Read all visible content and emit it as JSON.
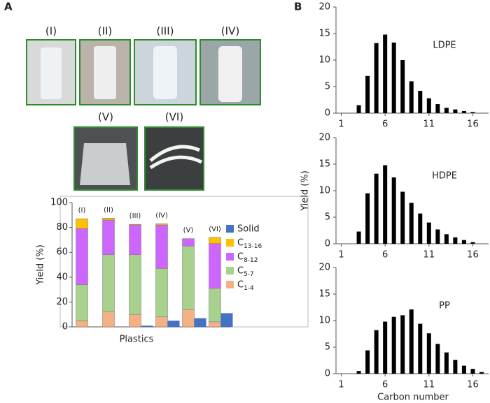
{
  "panel_labels": [
    "A",
    "B"
  ],
  "photos": [
    "(I)",
    "(II)",
    "(III)",
    "(IV)",
    "(V)",
    "(VI)"
  ],
  "chart_data": [
    {
      "type": "stacked-bar",
      "xlabel": "Plastics",
      "ylabel": "Yield (%)",
      "categories": [
        "(I)",
        "(II)",
        "(III)",
        "(IV)",
        "(V)",
        "(VI)"
      ],
      "series": [
        {
          "name": "C1-4",
          "color": "#f4b183",
          "stacked": true,
          "values": [
            5,
            12,
            10,
            8,
            14,
            4
          ]
        },
        {
          "name": "C5-7",
          "color": "#a9d18e",
          "stacked": true,
          "values": [
            29,
            46,
            48,
            39,
            51,
            27
          ]
        },
        {
          "name": "C8-12",
          "color": "#cc66ff",
          "stacked": true,
          "values": [
            45,
            28,
            24,
            35,
            6,
            36
          ]
        },
        {
          "name": "C13-16",
          "color": "#ffc000",
          "stacked": true,
          "values": [
            8,
            1.5,
            0.5,
            1,
            0,
            5
          ]
        },
        {
          "name": "Solid",
          "color": "#4472c4",
          "stacked": false,
          "values": [
            0,
            0,
            1,
            5,
            7,
            11
          ]
        }
      ],
      "ylim": [
        0,
        100
      ],
      "yticks": [
        0,
        20,
        40,
        60,
        80,
        100
      ],
      "grid": false
    },
    {
      "type": "histogram",
      "label": "LDPE",
      "x": [
        3,
        4,
        5,
        6,
        7,
        8,
        9,
        10,
        11,
        12,
        13,
        14,
        15,
        16
      ],
      "values": [
        1.5,
        7,
        13.2,
        14.8,
        13.3,
        10,
        6,
        4.2,
        2.8,
        1.7,
        1,
        0.7,
        0.4,
        0.2
      ],
      "color": "#000000",
      "xlim": [
        0.4,
        17.8
      ],
      "xticks": [
        1,
        6,
        11,
        16
      ],
      "ylim": [
        0,
        20
      ],
      "yticks": [
        0,
        5,
        10,
        15,
        20
      ]
    },
    {
      "type": "histogram",
      "label": "HDPE",
      "ylabel": "Yield (%)",
      "x": [
        3,
        4,
        5,
        6,
        7,
        8,
        9,
        10,
        11,
        12,
        13,
        14,
        15,
        16
      ],
      "values": [
        2.3,
        9.5,
        13.2,
        14.8,
        12.5,
        9.8,
        7.7,
        5.7,
        4,
        2.7,
        1.8,
        1.2,
        0.7,
        0.3
      ],
      "color": "#000000",
      "xlim": [
        0.4,
        17.8
      ],
      "xticks": [
        1,
        6,
        11,
        16
      ],
      "ylim": [
        0,
        20
      ],
      "yticks": [
        0,
        5,
        10,
        15,
        20
      ]
    },
    {
      "type": "histogram",
      "label": "PP",
      "xlabel": "Carbon number",
      "x": [
        3,
        4,
        5,
        6,
        7,
        8,
        9,
        10,
        11,
        12,
        13,
        14,
        15,
        16,
        17
      ],
      "values": [
        0.5,
        4.4,
        8.2,
        9.8,
        10.7,
        11,
        12.1,
        9.4,
        7.6,
        5.6,
        4,
        2.6,
        1.5,
        0.9,
        0.3
      ],
      "color": "#000000",
      "xlim": [
        0.4,
        17.8
      ],
      "xticks": [
        1,
        6,
        11,
        16
      ],
      "ylim": [
        0,
        20
      ],
      "yticks": [
        0,
        5,
        10,
        15,
        20
      ]
    }
  ]
}
